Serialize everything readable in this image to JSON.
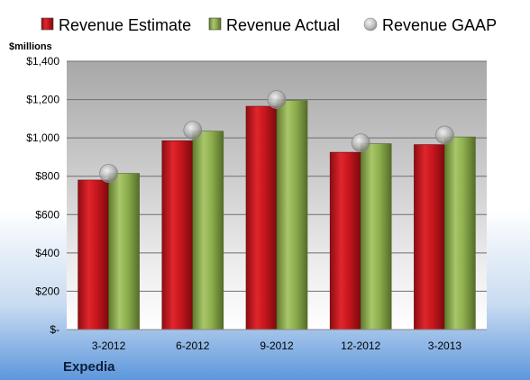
{
  "company": "Expedia",
  "colors": {
    "estimate": "#c8161d",
    "actual": "#8fb04f",
    "gaap": "#b9b9b9"
  },
  "chart_data": {
    "type": "bar",
    "categories": [
      "3-2012",
      "6-2012",
      "9-2012",
      "12-2012",
      "3-2013"
    ],
    "series": [
      {
        "name": "Revenue Estimate",
        "type": "bar",
        "values": [
          780,
          985,
          1165,
          925,
          965
        ]
      },
      {
        "name": "Revenue Actual",
        "type": "bar",
        "values": [
          815,
          1035,
          1195,
          970,
          1005
        ]
      },
      {
        "name": "Revenue GAAP",
        "type": "scatter",
        "values": [
          815,
          1040,
          1200,
          975,
          1015
        ]
      }
    ],
    "ylabel": "$millions",
    "ylim": [
      0,
      1400
    ],
    "yticks": [
      0,
      200,
      400,
      600,
      800,
      1000,
      1200,
      1400
    ],
    "ytick_labels": [
      "$-",
      "$200",
      "$400",
      "$600",
      "$800",
      "$1,000",
      "$1,200",
      "$1,400"
    ],
    "grid": true,
    "legend": "top"
  }
}
